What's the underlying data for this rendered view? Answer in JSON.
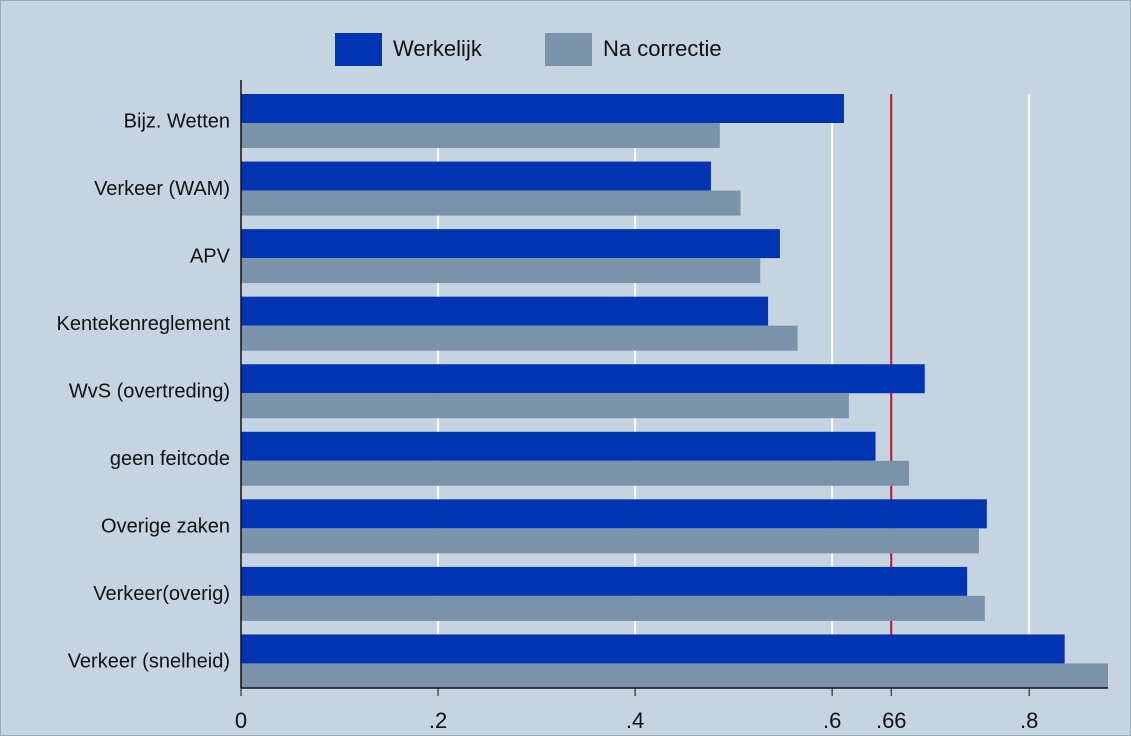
{
  "chart_data": {
    "type": "hbar",
    "categories": [
      "Bijz. Wetten",
      "Verkeer (WAM)",
      "APV",
      "Kentekenreglement",
      "WvS (overtreding)",
      "geen feitcode",
      "Overige zaken",
      "Verkeer(overig)",
      "Verkeer (snelheid)"
    ],
    "series": [
      {
        "name": "Werkelijk",
        "color": "#0134b2",
        "values": [
          0.612,
          0.477,
          0.547,
          0.535,
          0.694,
          0.644,
          0.757,
          0.737,
          0.836
        ]
      },
      {
        "name": "Na correctie",
        "color": "#7b93aa",
        "values": [
          0.486,
          0.507,
          0.527,
          0.565,
          0.617,
          0.678,
          0.749,
          0.755,
          0.88
        ]
      }
    ],
    "xlim": [
      0,
      0.88
    ],
    "xticks": [
      0,
      {
        "value": 0.2,
        "label": ".2"
      },
      {
        "value": 0.4,
        "label": ".4"
      },
      {
        "value": 0.6,
        "label": ".6"
      },
      {
        "value": 0.66,
        "label": ".66"
      },
      {
        "value": 0.8,
        "label": ".8"
      }
    ],
    "grid": true,
    "reference_line": {
      "value": 0.66,
      "color": "#c0102a"
    },
    "legend": "top"
  }
}
